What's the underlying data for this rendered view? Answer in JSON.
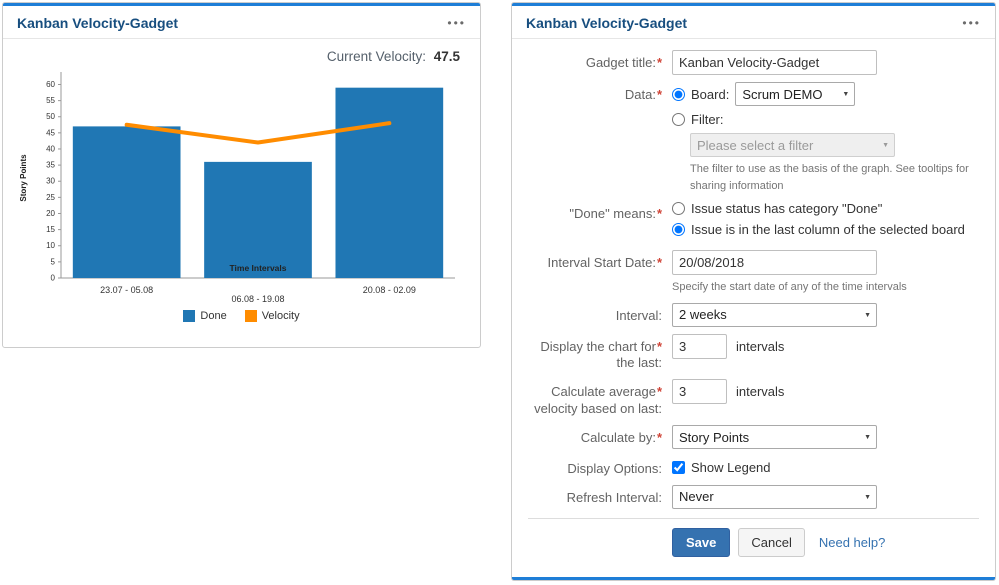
{
  "colors": {
    "accent_blue": "#1e7ed7",
    "title_blue": "#174e7f",
    "bar_blue": "#2077b4",
    "line_orange": "#ff8c00",
    "save_blue": "#3572b0",
    "required_red": "#d04437"
  },
  "left_panel": {
    "title": "Kanban Velocity-Gadget",
    "menu_icon": "•••",
    "current_velocity_label": "Current Velocity:",
    "current_velocity_value": "47.5"
  },
  "chart_data": {
    "type": "bar",
    "categories": [
      "23.07 - 05.08",
      "06.08 - 19.08",
      "20.08 - 02.09"
    ],
    "series": [
      {
        "name": "Done",
        "type": "bar",
        "values": [
          47,
          36,
          59
        ],
        "color": "#2077b4"
      },
      {
        "name": "Velocity",
        "type": "line",
        "values": [
          47.5,
          42,
          48
        ],
        "color": "#ff8c00"
      }
    ],
    "title": "",
    "xlabel": "Time Intervals",
    "ylabel": "Story Points",
    "ylim": [
      0,
      62
    ],
    "yticks": [
      0,
      5,
      10,
      15,
      20,
      25,
      30,
      35,
      40,
      45,
      50,
      55,
      60
    ],
    "legend_position": "bottom",
    "grid": false
  },
  "right_panel": {
    "title": "Kanban Velocity-Gadget",
    "menu_icon": "•••",
    "form": {
      "gadget_title": {
        "label": "Gadget title:",
        "req": "*",
        "value": "Kanban Velocity-Gadget"
      },
      "data": {
        "label": "Data:",
        "req": "*",
        "board_label": "Board:",
        "board_value": "Scrum DEMO",
        "filter_label": "Filter:",
        "filter_placeholder": "Please select a filter",
        "filter_help": "The filter to use as the basis of the graph. See tooltips for sharing information",
        "selected": "board"
      },
      "done_means": {
        "label": "\"Done\" means:",
        "req": "*",
        "option_category": "Issue status has category \"Done\"",
        "option_last_column": "Issue is in the last column of the selected board",
        "selected": "option_last_column"
      },
      "interval_start_date": {
        "label": "Interval Start Date:",
        "req": "*",
        "value": "20/08/2018",
        "help": "Specify the start date of any of the time intervals"
      },
      "interval": {
        "label": "Interval:",
        "value": "2 weeks"
      },
      "display_chart_for": {
        "label_line1": "Display the chart for",
        "req": "*",
        "label_line2": "the last:",
        "value": "3",
        "suffix": "intervals"
      },
      "calculate_average": {
        "label_line1": "Calculate average",
        "req": "*",
        "label_line2": "velocity based on last:",
        "value": "3",
        "suffix": "intervals"
      },
      "calculate_by": {
        "label": "Calculate by:",
        "req": "*",
        "value": "Story Points"
      },
      "display_options": {
        "label": "Display Options:",
        "checkbox_label": "Show Legend",
        "checked": true
      },
      "refresh_interval": {
        "label": "Refresh Interval:",
        "value": "Never"
      },
      "buttons": {
        "save": "Save",
        "cancel": "Cancel",
        "help_link": "Need help?"
      }
    }
  }
}
